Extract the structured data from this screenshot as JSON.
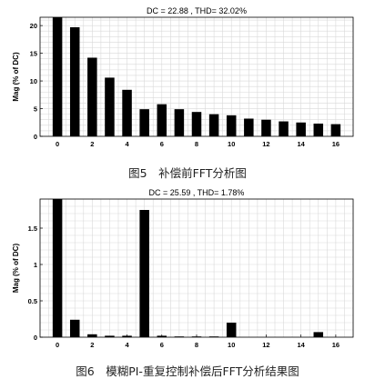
{
  "figures": [
    {
      "caption": "图5　补偿前FFT分析图",
      "chart_data": {
        "type": "bar",
        "title": "DC = 22.88 , THD= 32.02%",
        "ylabel": "Mag (% of DC)",
        "xlabel": "",
        "x": [
          0,
          1,
          2,
          3,
          4,
          5,
          6,
          7,
          8,
          9,
          10,
          11,
          12,
          13,
          14,
          15,
          16
        ],
        "values": [
          21.5,
          19.7,
          14.2,
          10.6,
          8.4,
          4.9,
          5.8,
          4.9,
          4.4,
          4.0,
          3.8,
          3.2,
          3.0,
          2.7,
          2.5,
          2.3,
          2.2
        ],
        "xticks": [
          0,
          2,
          4,
          6,
          8,
          10,
          12,
          14,
          16
        ],
        "yticks": [
          0,
          5,
          10,
          15,
          20
        ],
        "xlim": [
          -1,
          17
        ],
        "ylim": [
          0,
          21.5
        ],
        "grid": true,
        "bar_color": "#000000"
      }
    },
    {
      "caption": "图6　模糊PI-重复控制补偿后FFT分析结果图",
      "chart_data": {
        "type": "bar",
        "title": "DC = 25.59 , THD= 1.78%",
        "ylabel": "Mag (% of DC)",
        "xlabel": "",
        "x": [
          0,
          1,
          2,
          3,
          4,
          5,
          6,
          7,
          8,
          9,
          10,
          11,
          12,
          13,
          14,
          15,
          16
        ],
        "values": [
          1.9,
          0.24,
          0.04,
          0.02,
          0.02,
          1.75,
          0.02,
          0.01,
          0.01,
          0.01,
          0.2,
          0.0,
          0.0,
          0.0,
          0.0,
          0.07,
          0.0
        ],
        "xticks": [
          0,
          2,
          4,
          6,
          8,
          10,
          12,
          14,
          16
        ],
        "yticks": [
          0,
          0.5,
          1,
          1.5
        ],
        "xlim": [
          -1,
          17
        ],
        "ylim": [
          0,
          1.9
        ],
        "grid": true,
        "bar_color": "#000000"
      }
    }
  ]
}
